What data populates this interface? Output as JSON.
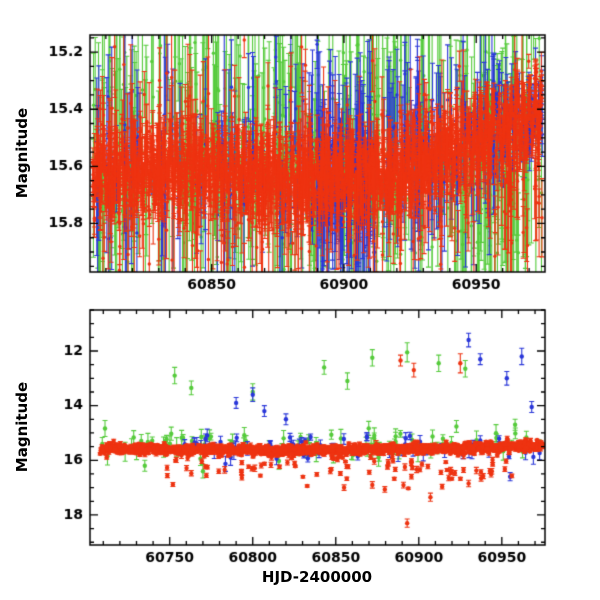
{
  "figure": {
    "background": "#ffffff",
    "frame_color": "#000000",
    "tick_label_color": "#000000"
  },
  "colors": {
    "red": "#ee3311",
    "green": "#55cb3b",
    "blue": "#2936d9"
  },
  "labels": {
    "top_ylabel": "Magnitude",
    "bottom_ylabel": "Magnitude",
    "bottom_xlabel": "HJD-2400000"
  },
  "chart_data": [
    {
      "id": "top-panel",
      "type": "scatter",
      "title": "",
      "xlabel": "",
      "ylabel": "Magnitude",
      "y_axis_inverted_magnitude": true,
      "x_range": [
        60804,
        60976
      ],
      "y_range": [
        15.14,
        15.97
      ],
      "x_major_ticks": [
        60850,
        60900,
        60950
      ],
      "x_tick_labels": [
        "60850",
        "60900",
        "60950"
      ],
      "x_minor_step": 10,
      "y_major_ticks": [
        15.2,
        15.4,
        15.6,
        15.8
      ],
      "y_tick_labels": [
        "15.2",
        "15.4",
        "15.6",
        "15.8"
      ],
      "y_minor_step": 0.05,
      "description": "Dense three-color photometry with error bars; red band oscillating around mag 15.55-15.7, brightening toward mag 15.4 after HJD 60930; green and blue points with large error bars scattered over 15.2-15.9",
      "series": [
        {
          "name": "green",
          "color": "green",
          "seed": 11,
          "radius": 1.7,
          "clusters": [
            {
              "n": 430,
              "x_min": 60805,
              "x_max": 60975,
              "mag_mean": 15.56,
              "mag_sd": 0.2,
              "err_min": 0.12,
              "err_max": 0.5
            }
          ]
        },
        {
          "name": "blue",
          "color": "blue",
          "seed": 22,
          "radius": 1.7,
          "clusters": [
            {
              "n": 90,
              "x_min": 60806,
              "x_max": 60890,
              "mag_mean": 15.6,
              "mag_sd": 0.15,
              "err_min": 0.08,
              "err_max": 0.4
            },
            {
              "n": 130,
              "x_min": 60890,
              "x_max": 60912,
              "mag_mean": 15.66,
              "mag_sd": 0.09,
              "err_min": 0.05,
              "err_max": 0.35
            },
            {
              "n": 90,
              "x_min": 60915,
              "x_max": 60958,
              "mag_mean": 15.55,
              "mag_sd": 0.12,
              "err_min": 0.06,
              "err_max": 0.3
            },
            {
              "n": 70,
              "x_min": 60956,
              "x_max": 60975,
              "mag_mean": 15.42,
              "mag_sd": 0.06,
              "err_min": 0.04,
              "err_max": 0.15
            }
          ]
        },
        {
          "name": "red",
          "color": "red",
          "seed": 33,
          "radius": 1.7,
          "clusters": [
            {
              "n": 2600,
              "x_min": 60805,
              "x_max": 60975,
              "trend": [
                [
                  60805,
                  15.63
                ],
                [
                  60840,
                  15.6
                ],
                [
                  60875,
                  15.64
                ],
                [
                  60912,
                  15.63
                ],
                [
                  60938,
                  15.56
                ],
                [
                  60958,
                  15.48
                ],
                [
                  60975,
                  15.41
                ]
              ],
              "osc_amp": 0.085,
              "osc_period": 2.3,
              "mag_sd": 0.045,
              "err_min": 0.01,
              "err_max": 0.07
            },
            {
              "n": 420,
              "x_min": 60805,
              "x_max": 60975,
              "mag_mean": 15.66,
              "mag_sd": 0.17,
              "err_min": 0.04,
              "err_max": 0.22
            }
          ]
        }
      ]
    },
    {
      "id": "bottom-panel",
      "type": "scatter",
      "title": "",
      "xlabel": "HJD-2400000",
      "ylabel": "Magnitude",
      "y_axis_inverted_magnitude": true,
      "x_range": [
        60702,
        60976
      ],
      "y_range": [
        10.5,
        19.1
      ],
      "x_major_ticks": [
        60750,
        60800,
        60850,
        60900,
        60950
      ],
      "x_tick_labels": [
        "60750",
        "60800",
        "60850",
        "60900",
        "60950"
      ],
      "x_minor_step": 10,
      "y_major_ticks": [
        12,
        14,
        16,
        18
      ],
      "y_tick_labels": [
        "12",
        "14",
        "16",
        "18"
      ],
      "y_minor_step": 0.5,
      "description": "Full-range light curve; tight red band near mag 15.5-15.8 with faint red excursions to mag 18.3 and bright red points near mag 12.4; scattered green outbursts at mag 12-13.5 and blue outbursts at mag 11.6-14",
      "series": [
        {
          "name": "green",
          "color": "green",
          "seed": 44,
          "radius": 2.2,
          "clusters": [
            {
              "n": 90,
              "x_min": 60708,
              "x_max": 60975,
              "mag_mean": 15.45,
              "mag_sd": 0.28,
              "err_min": 0.1,
              "err_max": 0.35
            },
            {
              "points": [
                [
                  60753,
                  12.9,
                  0.3
                ],
                [
                  60763,
                  13.35,
                  0.25
                ],
                [
                  60800,
                  13.5,
                  0.3
                ],
                [
                  60843,
                  12.6,
                  0.25
                ],
                [
                  60857,
                  13.1,
                  0.3
                ],
                [
                  60872,
                  12.25,
                  0.3
                ],
                [
                  60893,
                  12.05,
                  0.35
                ],
                [
                  60912,
                  12.45,
                  0.3
                ],
                [
                  60928,
                  12.65,
                  0.3
                ],
                [
                  60958,
                  14.7,
                  0.2
                ],
                [
                  60735,
                  16.2,
                  0.2
                ],
                [
                  60770,
                  16.4,
                  0.25
                ]
              ]
            }
          ]
        },
        {
          "name": "blue",
          "color": "blue",
          "seed": 55,
          "radius": 2.2,
          "clusters": [
            {
              "n": 70,
              "x_min": 60758,
              "x_max": 60975,
              "mag_mean": 15.5,
              "mag_sd": 0.22,
              "err_min": 0.08,
              "err_max": 0.3
            },
            {
              "points": [
                [
                  60790,
                  13.9,
                  0.2
                ],
                [
                  60800,
                  13.6,
                  0.25
                ],
                [
                  60807,
                  14.2,
                  0.2
                ],
                [
                  60820,
                  14.5,
                  0.2
                ],
                [
                  60930,
                  11.6,
                  0.25
                ],
                [
                  60937,
                  12.3,
                  0.2
                ],
                [
                  60953,
                  13.0,
                  0.25
                ],
                [
                  60962,
                  12.2,
                  0.3
                ],
                [
                  60968,
                  14.05,
                  0.2
                ],
                [
                  60955,
                  16.6,
                  0.15
                ]
              ]
            }
          ]
        },
        {
          "name": "red",
          "color": "red",
          "seed": 66,
          "radius": 2.2,
          "clusters": [
            {
              "n": 1700,
              "x_min": 60708,
              "x_max": 60975,
              "trend": [
                [
                  60708,
                  15.58
                ],
                [
                  60760,
                  15.6
                ],
                [
                  60860,
                  15.62
                ],
                [
                  60930,
                  15.56
                ],
                [
                  60975,
                  15.45
                ]
              ],
              "mag_sd": 0.09,
              "err_min": 0.02,
              "err_max": 0.08
            },
            {
              "n": 110,
              "x_min": 60740,
              "x_max": 60960,
              "mag_mean": 16.15,
              "mag_sd": 0.35,
              "err_min": 0.04,
              "err_max": 0.12
            },
            {
              "points": [
                [
                  60889,
                  12.35,
                  0.2
                ],
                [
                  60897,
                  12.7,
                  0.25
                ],
                [
                  60925,
                  12.45,
                  0.35
                ],
                [
                  60893,
                  18.3,
                  0.15
                ],
                [
                  60855,
                  17.0,
                  0.1
                ],
                [
                  60872,
                  16.9,
                  0.12
                ],
                [
                  60907,
                  17.35,
                  0.15
                ],
                [
                  60918,
                  16.65,
                  0.1
                ],
                [
                  60930,
                  16.85,
                  0.12
                ],
                [
                  60944,
                  16.4,
                  0.1
                ]
              ]
            }
          ]
        }
      ]
    }
  ]
}
